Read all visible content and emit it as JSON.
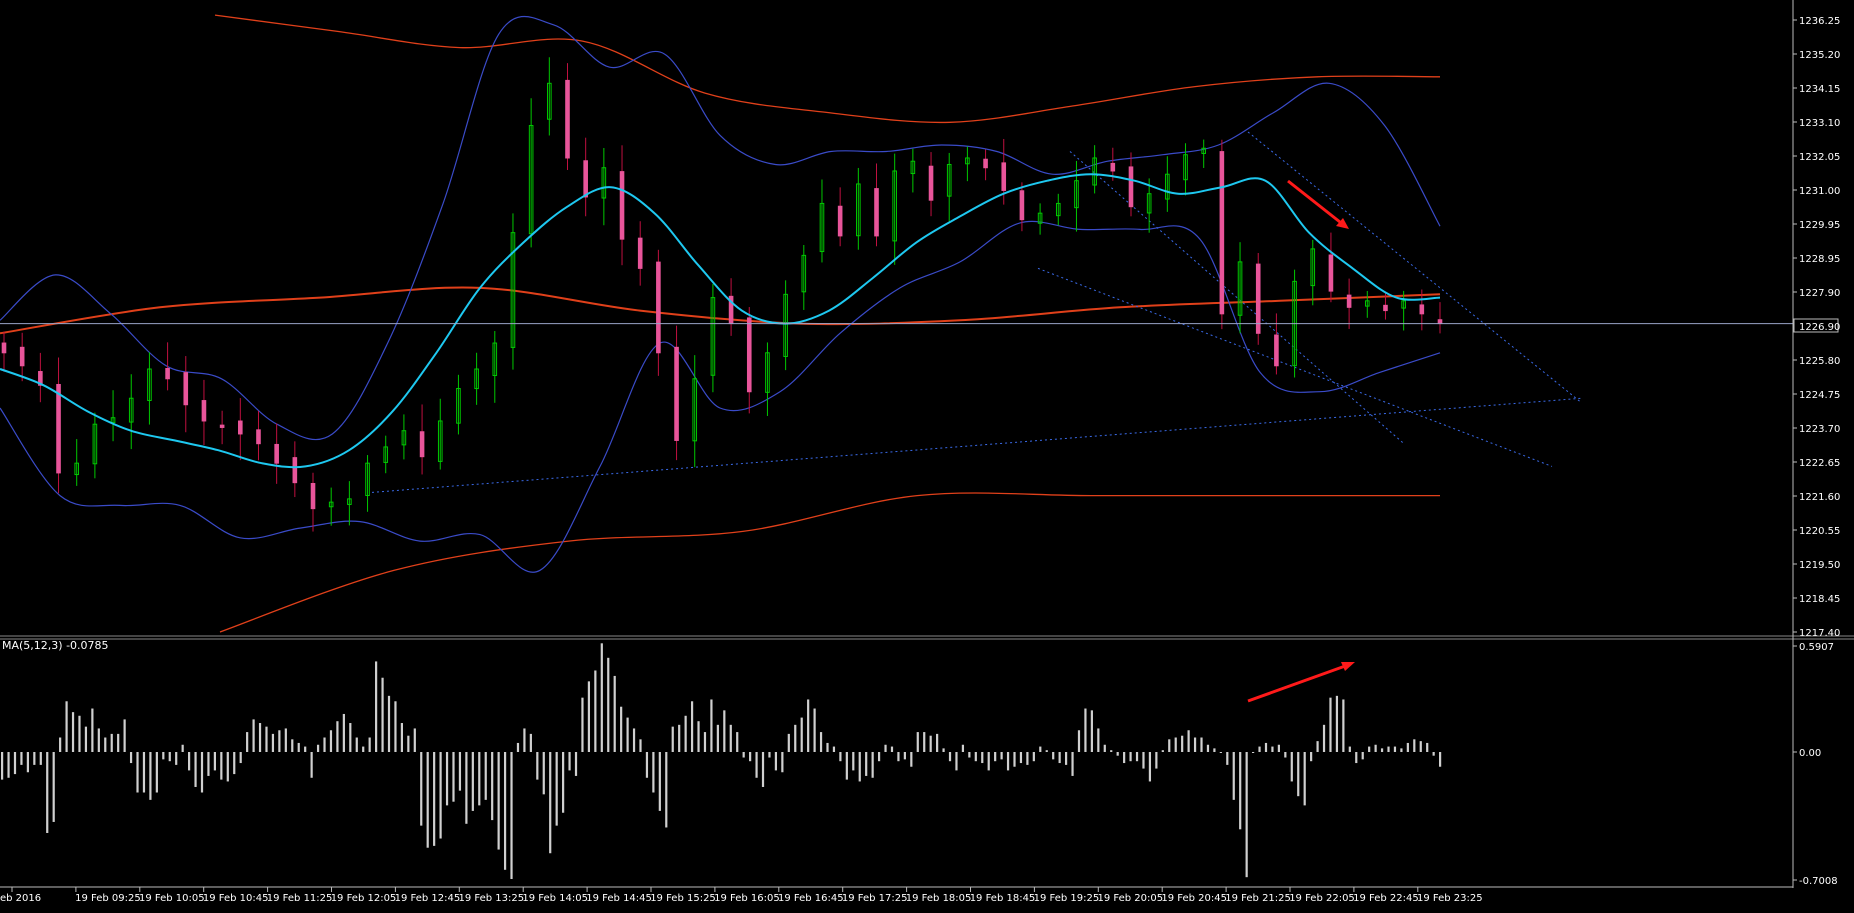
{
  "colors": {
    "background": "#000000",
    "axis": "#ffffff",
    "text": "#ffffff",
    "bull_candle": "#00c800",
    "bear_candle": "#e8559a",
    "wick_bull": "#00c800",
    "wick_bear": "#c01040",
    "ma_fast": "#1ec8f0",
    "bollinger_inner": "#3a4bc8",
    "bollinger_outer": "#e0401a",
    "current_price_line": "#9aa4c8",
    "trendline": "#3a6ae8",
    "arrow": "#ff1a1a",
    "histogram": "#d0d0d0"
  },
  "price_axis": {
    "labels": [
      "1236.25",
      "1235.20",
      "1234.15",
      "1233.10",
      "1232.05",
      "1231.00",
      "1229.95",
      "1228.95",
      "1227.90",
      "1226.90",
      "1225.80",
      "1224.75",
      "1223.70",
      "1222.65",
      "1221.60",
      "1220.55",
      "1219.50",
      "1218.45",
      "1217.40"
    ],
    "current_price": "1226.90"
  },
  "time_axis": {
    "labels": [
      "eb 2016",
      "19 Feb 09:25",
      "19 Feb 10:05",
      "19 Feb 10:45",
      "19 Feb 11:25",
      "19 Feb 12:05",
      "19 Feb 12:45",
      "19 Feb 13:25",
      "19 Feb 14:05",
      "19 Feb 14:45",
      "19 Feb 15:25",
      "19 Feb 16:05",
      "19 Feb 16:45",
      "19 Feb 17:25",
      "19 Feb 18:05",
      "19 Feb 18:45",
      "19 Feb 19:25",
      "19 Feb 20:05",
      "19 Feb 20:45",
      "19 Feb 21:25",
      "19 Feb 22:05",
      "19 Feb 22:45",
      "19 Feb 23:25"
    ]
  },
  "oscillator": {
    "label": "MA(5,12,3) -0.0785",
    "axis_labels": [
      "0.5907",
      "0.00",
      "-0.7008"
    ]
  },
  "chart_data": [
    {
      "type": "candlestick",
      "title": "",
      "ylim": [
        1217.4,
        1236.25
      ],
      "close_path": [
        1226.0,
        1225.6,
        1225.0,
        1222.3,
        1222.6,
        1223.8,
        1224.0,
        1224.6,
        1225.5,
        1225.2,
        1224.4,
        1223.9,
        1223.7,
        1223.5,
        1223.2,
        1222.6,
        1222.0,
        1221.2,
        1221.4,
        1221.5,
        1222.6,
        1223.1,
        1223.6,
        1222.8,
        1223.9,
        1224.9,
        1225.5,
        1226.3,
        1229.7,
        1233.0,
        1234.3,
        1232.0,
        1230.8,
        1231.7,
        1229.5,
        1228.6,
        1226.0,
        1223.3,
        1225.2,
        1227.7,
        1226.9,
        1224.8,
        1226.0,
        1227.8,
        1229.0,
        1230.6,
        1229.6,
        1231.2,
        1229.6,
        1231.6,
        1231.9,
        1230.7,
        1231.8,
        1232.0,
        1231.7,
        1231.0,
        1230.1,
        1230.3,
        1230.6,
        1231.3,
        1232.0,
        1231.6,
        1230.5,
        1230.9,
        1231.5,
        1232.1,
        1232.3,
        1227.2,
        1228.8,
        1226.6,
        1225.6,
        1228.2,
        1229.2,
        1227.9,
        1227.4,
        1227.6,
        1227.3,
        1227.6,
        1227.2,
        1226.9
      ],
      "sma_fast": [
        1225.5,
        1225.0,
        1224.2,
        1223.6,
        1223.3,
        1223.0,
        1222.6,
        1222.5,
        1223.0,
        1224.2,
        1226.0,
        1228.0,
        1229.4,
        1230.5,
        1231.1,
        1230.3,
        1228.7,
        1227.3,
        1226.9,
        1227.3,
        1228.3,
        1229.4,
        1230.2,
        1230.9,
        1231.3,
        1231.5,
        1231.3,
        1230.9,
        1231.1,
        1231.3,
        1229.7,
        1228.6,
        1227.7,
        1227.7
      ],
      "bollinger_inner_upper": [
        1227.0,
        1228.4,
        1227.2,
        1225.6,
        1225.2,
        1223.8,
        1223.5,
        1226.3,
        1230.6,
        1235.8,
        1236.1,
        1234.8,
        1235.2,
        1232.7,
        1231.8,
        1232.2,
        1232.2,
        1232.4,
        1232.2,
        1231.5,
        1231.9,
        1232.1,
        1232.4,
        1233.4,
        1234.3,
        1233.0,
        1229.9
      ],
      "bollinger_inner_lower": [
        1224.3,
        1221.6,
        1221.3,
        1221.3,
        1220.3,
        1220.6,
        1220.8,
        1220.2,
        1220.4,
        1219.3,
        1222.5,
        1226.3,
        1224.3,
        1224.8,
        1226.6,
        1228.0,
        1228.8,
        1230.0,
        1229.8,
        1229.8,
        1229.5,
        1225.4,
        1224.8,
        1225.4,
        1226.0
      ],
      "bollinger_outer_upper": [
        1236.4,
        1235.9,
        1235.4,
        1235.6,
        1234.0,
        1233.4,
        1233.1,
        1233.6,
        1234.2,
        1234.5,
        1234.5
      ],
      "bollinger_outer_middle": [
        1226.6,
        1227.4,
        1227.7,
        1228.0,
        1227.3,
        1226.9,
        1227.0,
        1227.4,
        1227.6,
        1227.8
      ],
      "bollinger_outer_lower": [
        1217.4,
        1219.3,
        1220.2,
        1220.5,
        1221.6,
        1221.6,
        1221.6,
        1221.6
      ],
      "trendlines": [
        {
          "from": [
            "19 Feb 12:45",
            1221.7
          ],
          "to": [
            "19 Feb 23:25",
            1224.6
          ],
          "style": "dotted"
        },
        {
          "from": [
            "19 Feb 19:25",
            1232.2
          ],
          "to": [
            "19 Feb 22:45",
            1223.2
          ],
          "style": "dotted"
        },
        {
          "from": [
            "19 Feb 19:25",
            1228.6
          ],
          "to": [
            "19 Feb 23:25",
            1222.5
          ],
          "style": "dotted"
        },
        {
          "from": [
            "19 Feb 21:25",
            1232.8
          ],
          "to": [
            "19 Feb 23:25",
            1224.5
          ],
          "style": "dotted"
        }
      ],
      "current_price": 1226.9
    },
    {
      "type": "bar",
      "title": "MA(5,12,3) -0.0785",
      "ylim": [
        -0.7008,
        0.5907
      ],
      "values": [
        -0.15,
        -0.14,
        -0.12,
        -0.07,
        -0.11,
        -0.07,
        -0.07,
        -0.44,
        -0.38,
        0.08,
        0.28,
        0.22,
        0.2,
        0.14,
        0.24,
        0.13,
        0.08,
        0.1,
        0.1,
        0.18,
        -0.06,
        -0.22,
        -0.22,
        -0.26,
        -0.22,
        -0.04,
        -0.05,
        -0.07,
        0.04,
        -0.1,
        -0.19,
        -0.22,
        -0.13,
        -0.1,
        -0.15,
        -0.16,
        -0.12,
        -0.06,
        0.11,
        0.18,
        0.16,
        0.14,
        0.1,
        0.12,
        0.13,
        0.07,
        0.05,
        0.03,
        -0.14,
        0.04,
        0.08,
        0.12,
        0.17,
        0.21,
        0.16,
        0.08,
        0.03,
        0.08,
        0.5,
        0.41,
        0.31,
        0.28,
        0.16,
        0.09,
        0.13,
        -0.4,
        -0.52,
        -0.51,
        -0.47,
        -0.29,
        -0.27,
        -0.21,
        -0.39,
        -0.32,
        -0.29,
        -0.26,
        -0.37,
        -0.53,
        -0.64,
        -0.69,
        0.05,
        0.13,
        0.1,
        -0.15,
        -0.23,
        -0.55,
        -0.4,
        -0.33,
        -0.1,
        -0.13,
        0.3,
        0.39,
        0.45,
        0.6,
        0.52,
        0.42,
        0.25,
        0.19,
        0.13,
        0.07,
        -0.14,
        -0.22,
        -0.32,
        -0.41,
        0.14,
        0.15,
        0.2,
        0.28,
        0.17,
        0.11,
        0.29,
        0.15,
        0.23,
        0.15,
        0.11,
        -0.03,
        -0.05,
        -0.14,
        -0.19,
        -0.03,
        -0.1,
        -0.11,
        0.1,
        0.15,
        0.19,
        0.29,
        0.24,
        0.11,
        0.05,
        0.03,
        -0.05,
        -0.15,
        -0.1,
        -0.16,
        -0.13,
        -0.14,
        -0.05,
        0.04,
        0.03,
        -0.05,
        -0.04,
        -0.08,
        0.11,
        0.11,
        0.09,
        0.1,
        0.02,
        -0.05,
        -0.1,
        0.04,
        -0.03,
        -0.05,
        -0.06,
        -0.1,
        -0.05,
        -0.04,
        -0.1,
        -0.08,
        -0.06,
        -0.07,
        -0.05,
        0.03,
        0.01,
        -0.04,
        -0.06,
        -0.07,
        -0.13,
        0.12,
        0.24,
        0.23,
        0.13,
        0.04,
        0.01,
        -0.02,
        -0.06,
        -0.05,
        -0.05,
        -0.09,
        -0.16,
        -0.09,
        0.01,
        0.07,
        0.08,
        0.09,
        0.12,
        0.08,
        0.08,
        0.04,
        0.02,
        0.0,
        -0.07,
        -0.26,
        -0.42,
        -0.68,
        0.0,
        0.03,
        0.05,
        0.03,
        0.04,
        -0.03,
        -0.16,
        -0.24,
        -0.29,
        -0.05,
        0.06,
        0.15,
        0.3,
        0.31,
        0.29,
        0.03,
        -0.06,
        -0.04,
        0.03,
        0.04,
        0.02,
        0.03,
        0.03,
        0.02,
        0.05,
        0.07,
        0.06,
        0.05,
        -0.02,
        -0.08
      ]
    }
  ]
}
